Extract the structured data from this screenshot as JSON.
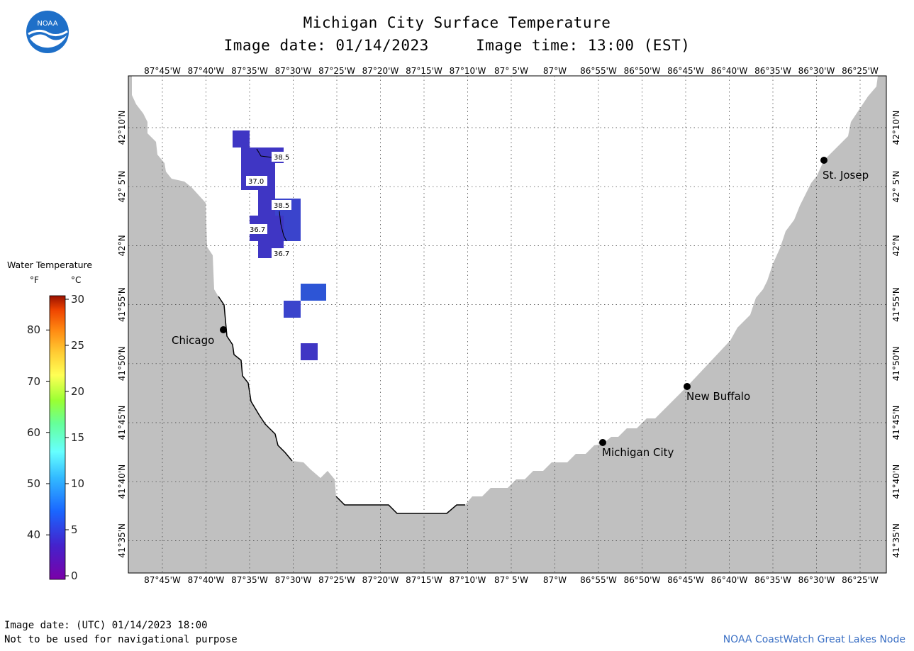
{
  "title": "Michigan City Surface Temperature",
  "image_date_label": "Image date: 01/14/2023",
  "image_time_label": "Image time: 13:00 (EST)",
  "logo_text": "NOAA",
  "legend": {
    "title": "Water Temperature",
    "unit_f": "°F",
    "unit_c": "°C",
    "f_ticks": [
      "80",
      "70",
      "60",
      "50",
      "40"
    ],
    "c_ticks": [
      "30",
      "25",
      "20",
      "15",
      "10",
      "5",
      "0"
    ],
    "colors": [
      "#7a00a8",
      "#4422cc",
      "#1a66ff",
      "#33bbff",
      "#66ffff",
      "#66ff99",
      "#99ff33",
      "#ffff55",
      "#ffcc33",
      "#ff8811",
      "#ee4400",
      "#991100"
    ]
  },
  "map": {
    "lon_labels": [
      "87°45'W",
      "87°40'W",
      "87°35'W",
      "87°30'W",
      "87°25'W",
      "87°20'W",
      "87°15'W",
      "87°10'W",
      "87° 5'W",
      "87°W",
      "86°55'W",
      "86°50'W",
      "86°45'W",
      "86°40'W",
      "86°35'W",
      "86°30'W",
      "86°25'W"
    ],
    "lat_labels": [
      "42°10'N",
      "42° 5'N",
      "42°N",
      "41°55'N",
      "41°50'N",
      "41°45'N",
      "41°40'N",
      "41°35'N"
    ],
    "land_color": "#c0c0c0",
    "water_color": "#ffffff",
    "cities": [
      {
        "name": "Chicago"
      },
      {
        "name": "St. Josep"
      },
      {
        "name": "New Buffalo"
      },
      {
        "name": "Michigan City"
      }
    ],
    "isotherm_labels": [
      "38.5",
      "37.0",
      "38.5",
      "36.7",
      "36.7"
    ],
    "pixel_colors": [
      "#3f36c4",
      "#3a44cc",
      "#2d55d6"
    ]
  },
  "footer": {
    "utc_date": "Image date: (UTC) 01/14/2023  18:00",
    "warning": "Not to be used for navigational purpose",
    "credit": "NOAA CoastWatch Great Lakes Node"
  }
}
